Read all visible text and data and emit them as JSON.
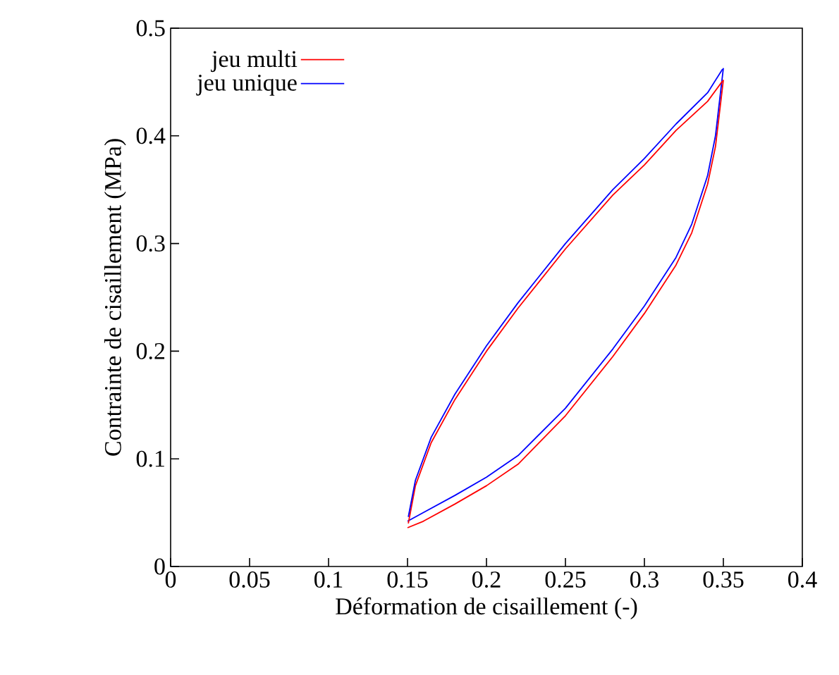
{
  "chart_data": {
    "type": "line",
    "xlabel": "Déformation de cisaillement (-)",
    "ylabel": "Contrainte de cisaillement (MPa)",
    "xlim": [
      0,
      0.4
    ],
    "ylim": [
      0,
      0.5
    ],
    "xticks": [
      0,
      0.05,
      0.1,
      0.15,
      0.2,
      0.25,
      0.3,
      0.35,
      0.4
    ],
    "yticks": [
      0,
      0.1,
      0.2,
      0.3,
      0.4,
      0.5
    ],
    "legend": "top left",
    "grid": false,
    "series": [
      {
        "name": "jeu multi",
        "color": "#ff0000",
        "x": [
          0.15,
          0.16,
          0.18,
          0.2,
          0.22,
          0.25,
          0.28,
          0.3,
          0.32,
          0.33,
          0.34,
          0.345,
          0.35
        ],
        "values": [
          0.036,
          0.042,
          0.058,
          0.075,
          0.095,
          0.14,
          0.195,
          0.235,
          0.28,
          0.31,
          0.355,
          0.39,
          0.452
        ]
      },
      {
        "name": "jeu unique",
        "color": "#0000ff",
        "x": [
          0.15,
          0.16,
          0.18,
          0.2,
          0.22,
          0.25,
          0.28,
          0.3,
          0.32,
          0.33,
          0.34,
          0.345,
          0.35
        ],
        "values": [
          0.042,
          0.05,
          0.066,
          0.083,
          0.103,
          0.147,
          0.202,
          0.242,
          0.287,
          0.318,
          0.363,
          0.4,
          0.463
        ]
      },
      {
        "color": "#ff0000",
        "x": [
          0.1505,
          0.155,
          0.165,
          0.18,
          0.2,
          0.22,
          0.25,
          0.28,
          0.3,
          0.32,
          0.34,
          0.3495
        ],
        "values": [
          0.04,
          0.075,
          0.115,
          0.155,
          0.2,
          0.24,
          0.295,
          0.345,
          0.373,
          0.405,
          0.432,
          0.451
        ]
      },
      {
        "color": "#0000ff",
        "x": [
          0.1505,
          0.155,
          0.165,
          0.18,
          0.2,
          0.22,
          0.25,
          0.28,
          0.3,
          0.32,
          0.34,
          0.3495
        ],
        "values": [
          0.046,
          0.08,
          0.12,
          0.16,
          0.205,
          0.245,
          0.3,
          0.35,
          0.379,
          0.411,
          0.44,
          0.462
        ]
      }
    ]
  }
}
